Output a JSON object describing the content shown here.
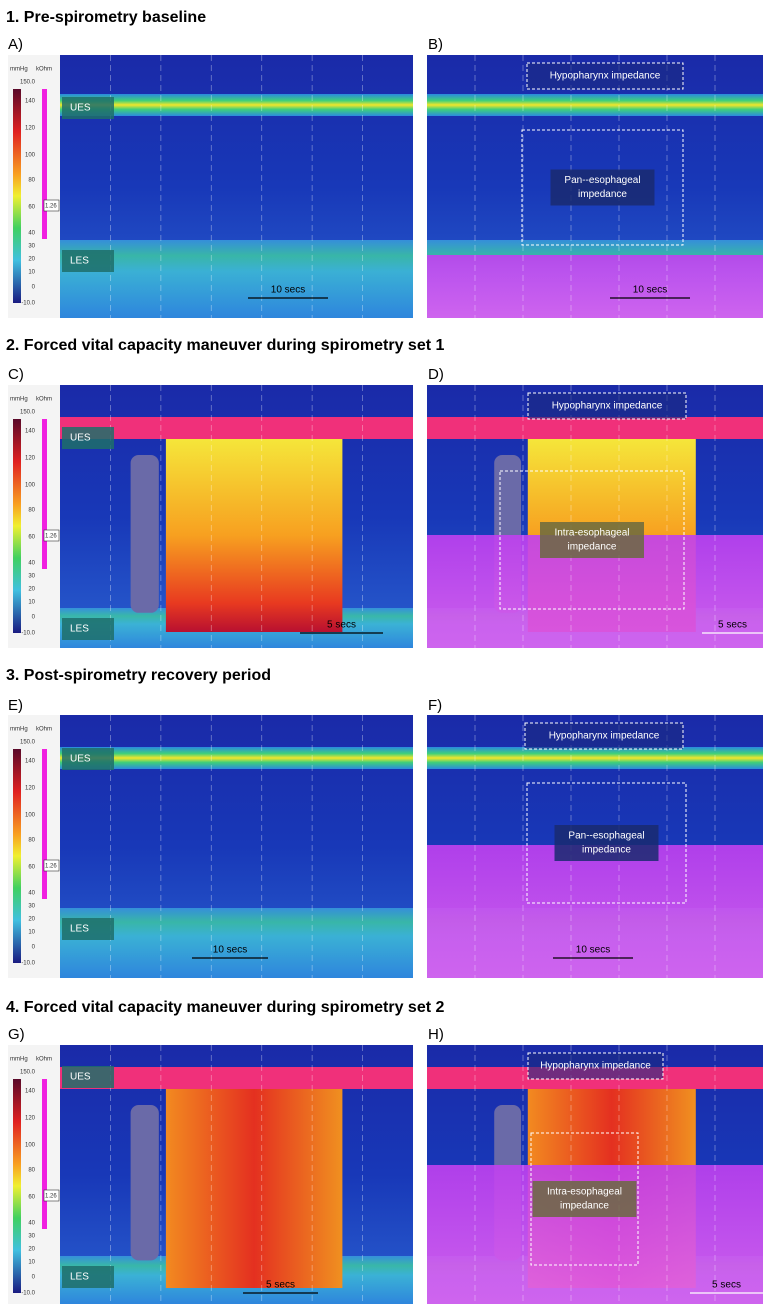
{
  "sections": [
    {
      "title": "1. Pre-spirometry baseline",
      "left": {
        "letter": "A)",
        "ues": "UES",
        "les": "LES",
        "time": "10 secs"
      },
      "right": {
        "letter": "B)",
        "hypo": "Hypopharynx impedance",
        "eso": [
          "Pan--esophageal",
          "impedance"
        ],
        "time": "10 secs"
      }
    },
    {
      "title": "2. Forced vital capacity maneuver during spirometry set 1",
      "left": {
        "letter": "C)",
        "ues": "UES",
        "les": "LES",
        "time": "5 secs"
      },
      "right": {
        "letter": "D)",
        "hypo": "Hypopharynx impedance",
        "eso": [
          "Intra-esophageal",
          "impedance"
        ],
        "time": "5 secs"
      }
    },
    {
      "title": "3. Post-spirometry recovery period",
      "left": {
        "letter": "E)",
        "ues": "UES",
        "les": "LES",
        "time": "10 secs"
      },
      "right": {
        "letter": "F)",
        "hypo": "Hypopharynx impedance",
        "eso": [
          "Pan--esophageal",
          "impedance"
        ],
        "time": "10 secs"
      }
    },
    {
      "title": "4. Forced vital capacity maneuver during spirometry set 2",
      "left": {
        "letter": "G)",
        "ues": "UES",
        "les": "LES",
        "time": "5 secs"
      },
      "right": {
        "letter": "H)",
        "hypo": "Hypopharynx impedance",
        "eso": [
          "Intra-esophageal",
          "impedance"
        ],
        "time": "5 secs"
      }
    }
  ],
  "scale": {
    "pressure_unit": "mmHg",
    "impedance_unit": "kOhm",
    "ticks": [
      "150.0",
      "140",
      "120",
      "100",
      "80",
      "60",
      "40",
      "30",
      "20",
      "10",
      "0",
      "-10.0"
    ],
    "marker": "1.26"
  }
}
